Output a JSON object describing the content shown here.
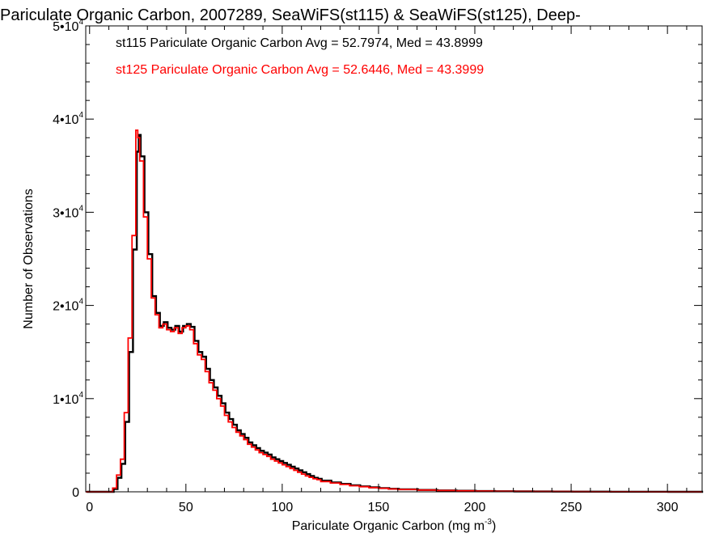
{
  "chart_data": {
    "type": "line",
    "title": "Pariculate Organic Carbon, 2007289, SeaWiFS(st115) & SeaWiFS(st125), Deep-",
    "xlabel": "Pariculate Organic Carbon (mg m",
    "xlabel_sup": "-3",
    "xlabel_suffix": ")",
    "ylabel": "Number of Observations",
    "xlim": [
      -2,
      318
    ],
    "ylim": [
      0,
      50000
    ],
    "x_ticks": [
      0,
      50,
      100,
      150,
      200,
      250,
      300
    ],
    "x_tick_labels": [
      "0",
      "50",
      "100",
      "150",
      "200",
      "250",
      "300"
    ],
    "y_ticks": [
      0,
      10000,
      20000,
      30000,
      40000,
      50000
    ],
    "y_tick_labels": [
      {
        "base": "0",
        "exp": ""
      },
      {
        "base": "1•10",
        "exp": "4"
      },
      {
        "base": "2•10",
        "exp": "4"
      },
      {
        "base": "3•10",
        "exp": "4"
      },
      {
        "base": "4•10",
        "exp": "4"
      },
      {
        "base": "5•10",
        "exp": "4"
      }
    ],
    "grid": false,
    "legend_position": "top-left",
    "legend": [
      "st115 Pariculate Organic Carbon Avg = 52.7974, Med = 43.8999",
      "st125 Pariculate Organic Carbon Avg = 52.6446, Med = 43.3999"
    ],
    "series": [
      {
        "name": "st115",
        "color": "#000000",
        "step": true,
        "x": [
          -2,
          8,
          12,
          14,
          16,
          18,
          20,
          22,
          24,
          25,
          26,
          28,
          30,
          32,
          34,
          36,
          38,
          40,
          42,
          44,
          46,
          48,
          50,
          52,
          54,
          56,
          58,
          60,
          62,
          64,
          66,
          68,
          70,
          72,
          74,
          76,
          78,
          80,
          82,
          84,
          86,
          88,
          90,
          92,
          94,
          96,
          98,
          100,
          102,
          104,
          106,
          108,
          110,
          112,
          114,
          116,
          118,
          120,
          125,
          130,
          135,
          140,
          145,
          150,
          155,
          160,
          170,
          180,
          190,
          200,
          210,
          220,
          230,
          240,
          250,
          260,
          270,
          280,
          290,
          300,
          310
        ],
        "values": [
          0,
          0,
          300,
          1500,
          3000,
          7500,
          15000,
          26000,
          36500,
          38300,
          36000,
          30000,
          25500,
          21000,
          19200,
          17800,
          18200,
          17600,
          17400,
          17800,
          17200,
          17800,
          18000,
          17700,
          16200,
          15000,
          14500,
          13200,
          12000,
          11200,
          10300,
          9500,
          8500,
          7800,
          7200,
          6600,
          6200,
          5800,
          5300,
          5000,
          4700,
          4400,
          4200,
          4000,
          3700,
          3500,
          3300,
          3100,
          2900,
          2700,
          2500,
          2300,
          2100,
          1900,
          1700,
          1500,
          1400,
          1200,
          1000,
          850,
          700,
          580,
          480,
          400,
          320,
          270,
          200,
          150,
          110,
          80,
          60,
          45,
          35,
          25,
          20,
          15,
          10,
          8,
          5,
          3,
          0
        ]
      },
      {
        "name": "st125",
        "color": "#ff0000",
        "step": true,
        "x": [
          -2,
          8,
          12,
          14,
          16,
          18,
          20,
          22,
          24,
          25,
          26,
          28,
          30,
          32,
          34,
          36,
          38,
          40,
          42,
          44,
          46,
          48,
          50,
          52,
          54,
          56,
          58,
          60,
          62,
          64,
          66,
          68,
          70,
          72,
          74,
          76,
          78,
          80,
          82,
          84,
          86,
          88,
          90,
          92,
          94,
          96,
          98,
          100,
          102,
          104,
          106,
          108,
          110,
          112,
          114,
          116,
          118,
          120,
          125,
          130,
          135,
          140,
          145,
          150,
          155,
          160,
          170,
          180,
          190,
          200,
          210,
          220,
          230,
          240,
          250,
          260,
          270,
          280,
          290,
          300,
          310
        ],
        "values": [
          0,
          0,
          400,
          1800,
          3500,
          8500,
          16500,
          27500,
          38800,
          38000,
          35500,
          29500,
          25000,
          20800,
          19000,
          17600,
          18000,
          17400,
          17200,
          17600,
          17000,
          17600,
          17800,
          17400,
          15900,
          14700,
          14200,
          12900,
          11700,
          10900,
          10000,
          9200,
          8200,
          7500,
          6900,
          6400,
          6000,
          5600,
          5100,
          4800,
          4500,
          4200,
          4000,
          3800,
          3500,
          3300,
          3100,
          2900,
          2700,
          2500,
          2300,
          2100,
          1900,
          1700,
          1550,
          1400,
          1300,
          1100,
          950,
          800,
          650,
          550,
          450,
          380,
          300,
          250,
          190,
          140,
          100,
          75,
          55,
          40,
          30,
          22,
          18,
          13,
          9,
          7,
          4,
          2,
          0
        ]
      }
    ]
  }
}
